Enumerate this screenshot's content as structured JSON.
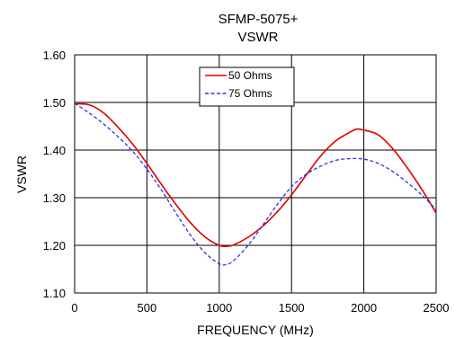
{
  "chart_data": {
    "type": "line",
    "title": "SFMP-5075+",
    "subtitle": "VSWR",
    "xlabel": "FREQUENCY (MHz)",
    "ylabel": "VSWR",
    "xlim": [
      0,
      2500
    ],
    "ylim": [
      1.1,
      1.6
    ],
    "x_ticks": [
      0,
      500,
      1000,
      1500,
      2000,
      2500
    ],
    "x_tick_labels": [
      "0",
      "500",
      "1000",
      "1500",
      "2000",
      "2500"
    ],
    "y_ticks": [
      1.1,
      1.2,
      1.3,
      1.4,
      1.5,
      1.6
    ],
    "y_tick_labels": [
      "1.10",
      "1.20",
      "1.30",
      "1.40",
      "1.50",
      "1.60"
    ],
    "grid": true,
    "legend_position": "top-center",
    "series": [
      {
        "name": "50 Ohms",
        "color": "#e00000",
        "dash": "solid",
        "x": [
          0,
          100,
          200,
          300,
          400,
          500,
          600,
          700,
          800,
          900,
          1000,
          1050,
          1100,
          1200,
          1300,
          1400,
          1500,
          1600,
          1700,
          1800,
          1900,
          1950,
          2000,
          2100,
          2200,
          2300,
          2400,
          2500
        ],
        "y": [
          1.497,
          1.495,
          1.478,
          1.448,
          1.413,
          1.372,
          1.328,
          1.286,
          1.248,
          1.218,
          1.2,
          1.198,
          1.201,
          1.217,
          1.24,
          1.27,
          1.306,
          1.347,
          1.387,
          1.418,
          1.437,
          1.444,
          1.442,
          1.432,
          1.403,
          1.363,
          1.318,
          1.268
        ]
      },
      {
        "name": "75 Ohms",
        "color": "#3030e0",
        "dash": "dashed",
        "x": [
          0,
          100,
          200,
          300,
          400,
          500,
          600,
          700,
          800,
          900,
          1000,
          1050,
          1100,
          1200,
          1300,
          1400,
          1500,
          1600,
          1700,
          1800,
          1900,
          2000,
          2100,
          2200,
          2300,
          2400,
          2500
        ],
        "y": [
          1.498,
          1.478,
          1.455,
          1.428,
          1.398,
          1.36,
          1.316,
          1.268,
          1.222,
          1.185,
          1.161,
          1.16,
          1.168,
          1.2,
          1.242,
          1.285,
          1.323,
          1.349,
          1.366,
          1.378,
          1.382,
          1.381,
          1.372,
          1.355,
          1.332,
          1.306,
          1.275
        ]
      }
    ]
  }
}
